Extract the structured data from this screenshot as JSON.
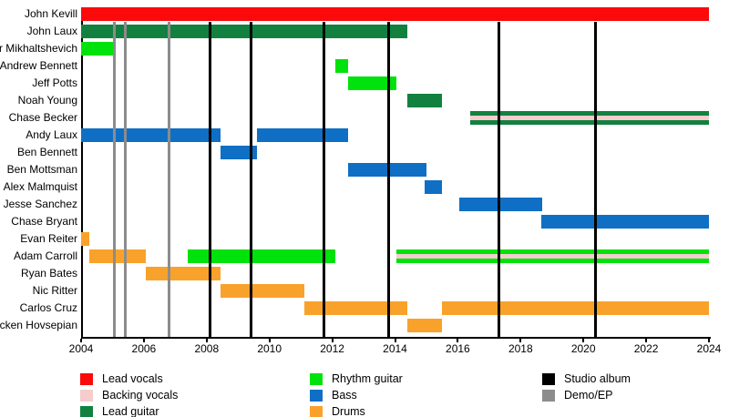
{
  "chart_data": {
    "type": "bar",
    "subtype": "band-member-timeline-gantt",
    "title": "",
    "x_axis": {
      "min": 2004,
      "max": 2024,
      "tick_step": 2,
      "ticks": [
        2004,
        2006,
        2008,
        2010,
        2012,
        2014,
        2016,
        2018,
        2020,
        2022,
        2024
      ]
    },
    "grid": "vertical-event-lines-only",
    "colors": {
      "lead_vocals": "#FA0A0A",
      "backing_vocals": "#F6CCCC",
      "lead_guitar": "#12813F",
      "rhythm_guitar": "#00E20C",
      "bass": "#0F6FC5",
      "drums": "#F9A22B",
      "studio_album": "#000000",
      "demo_ep": "#8C8C8C"
    },
    "members": [
      {
        "name": "John Kevill",
        "segments": [
          {
            "start": 2004,
            "end": 2024,
            "roles": [
              "lead_vocals"
            ]
          }
        ]
      },
      {
        "name": "John Laux",
        "segments": [
          {
            "start": 2004,
            "end": 2014.4,
            "roles": [
              "lead_guitar"
            ]
          }
        ]
      },
      {
        "name": "Victor Mikhaltshevich",
        "segments": [
          {
            "start": 2004,
            "end": 2005.05,
            "roles": [
              "rhythm_guitar"
            ]
          }
        ]
      },
      {
        "name": "Andrew Bennett",
        "segments": [
          {
            "start": 2012.1,
            "end": 2012.5,
            "roles": [
              "rhythm_guitar"
            ]
          }
        ]
      },
      {
        "name": "Jeff Potts",
        "segments": [
          {
            "start": 2012.5,
            "end": 2014.05,
            "roles": [
              "rhythm_guitar"
            ]
          }
        ]
      },
      {
        "name": "Noah Young",
        "segments": [
          {
            "start": 2014.4,
            "end": 2015.5,
            "roles": [
              "lead_guitar"
            ]
          }
        ]
      },
      {
        "name": "Chase Becker",
        "segments": [
          {
            "start": 2016.4,
            "end": 2024,
            "roles": [
              "lead_guitar",
              "backing_vocals"
            ]
          }
        ]
      },
      {
        "name": "Andy Laux",
        "segments": [
          {
            "start": 2004,
            "end": 2008.45,
            "roles": [
              "bass"
            ]
          },
          {
            "start": 2009.6,
            "end": 2012.5,
            "roles": [
              "bass"
            ]
          }
        ]
      },
      {
        "name": "Ben Bennett",
        "segments": [
          {
            "start": 2008.45,
            "end": 2009.6,
            "roles": [
              "bass"
            ]
          }
        ]
      },
      {
        "name": "Ben Mottsman",
        "segments": [
          {
            "start": 2012.5,
            "end": 2015.0,
            "roles": [
              "bass"
            ]
          }
        ]
      },
      {
        "name": "Alex Malmquist",
        "segments": [
          {
            "start": 2014.95,
            "end": 2015.5,
            "roles": [
              "bass"
            ]
          }
        ]
      },
      {
        "name": "Jesse Sanchez",
        "segments": [
          {
            "start": 2016.05,
            "end": 2018.7,
            "roles": [
              "bass"
            ]
          }
        ]
      },
      {
        "name": "Chase Bryant",
        "segments": [
          {
            "start": 2018.65,
            "end": 2024,
            "roles": [
              "bass"
            ]
          }
        ]
      },
      {
        "name": "Evan Reiter",
        "segments": [
          {
            "start": 2004,
            "end": 2004.25,
            "roles": [
              "drums"
            ]
          }
        ]
      },
      {
        "name": "Adam Carroll",
        "segments": [
          {
            "start": 2004.25,
            "end": 2006.05,
            "roles": [
              "drums"
            ]
          },
          {
            "start": 2007.4,
            "end": 2012.1,
            "roles": [
              "rhythm_guitar"
            ]
          },
          {
            "start": 2014.05,
            "end": 2024,
            "roles": [
              "rhythm_guitar",
              "backing_vocals"
            ]
          }
        ]
      },
      {
        "name": "Ryan Bates",
        "segments": [
          {
            "start": 2006.05,
            "end": 2008.45,
            "roles": [
              "drums"
            ]
          }
        ]
      },
      {
        "name": "Nic Ritter",
        "segments": [
          {
            "start": 2008.45,
            "end": 2011.1,
            "roles": [
              "drums"
            ]
          }
        ]
      },
      {
        "name": "Carlos Cruz",
        "segments": [
          {
            "start": 2011.1,
            "end": 2014.4,
            "roles": [
              "drums"
            ]
          },
          {
            "start": 2015.5,
            "end": 2024,
            "roles": [
              "drums"
            ]
          }
        ]
      },
      {
        "name": "Vicken Hovsepian",
        "segments": [
          {
            "start": 2014.4,
            "end": 2015.5,
            "roles": [
              "drums"
            ]
          }
        ]
      }
    ],
    "events": {
      "studio_albums": [
        2008.1,
        2009.4,
        2011.75,
        2013.8,
        2017.3,
        2020.4
      ],
      "demos_eps": [
        2005.05,
        2005.4,
        2006.8
      ]
    },
    "legend": {
      "position": "bottom",
      "columns": [
        [
          {
            "role": "lead_vocals",
            "label": "Lead vocals"
          },
          {
            "role": "backing_vocals",
            "label": "Backing vocals"
          },
          {
            "role": "lead_guitar",
            "label": "Lead guitar"
          }
        ],
        [
          {
            "role": "rhythm_guitar",
            "label": "Rhythm guitar"
          },
          {
            "role": "bass",
            "label": "Bass"
          },
          {
            "role": "drums",
            "label": "Drums"
          }
        ],
        [
          {
            "role": "studio_album",
            "label": "Studio album"
          },
          {
            "role": "demo_ep",
            "label": "Demo/EP"
          }
        ]
      ]
    }
  }
}
